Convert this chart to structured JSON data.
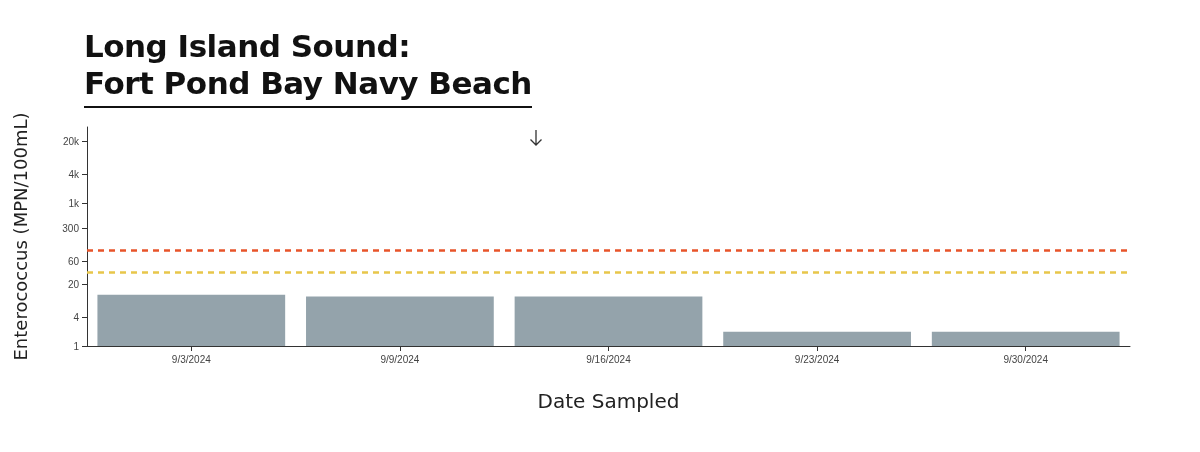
{
  "chart_data": {
    "type": "bar",
    "title": "Long Island Sound:\nFort Pond Bay Navy Beach",
    "xlabel": "Date Sampled",
    "ylabel": "Enterococcus (MPN/100mL)",
    "categories": [
      "9/3/2024",
      "9/9/2024",
      "9/16/2024",
      "9/23/2024",
      "9/30/2024"
    ],
    "series": [
      {
        "color": "#94a3ab",
        "values": [
          12,
          11,
          11,
          2,
          2
        ]
      }
    ],
    "log": "y",
    "ylim": [
      1,
      40000
    ],
    "yticks": [
      1,
      4,
      20,
      60,
      300,
      {
        "value": 1000,
        "label": "1k"
      },
      {
        "value": 4000,
        "label": "4k"
      },
      {
        "value": 20000,
        "label": "20k"
      }
    ],
    "ref_lines": [
      {
        "axis": "y",
        "value": 104,
        "color": "#e8542a",
        "line_style": "dashed"
      },
      {
        "axis": "y",
        "value": 35,
        "color": "#e8c64a",
        "line_style": "dashed"
      }
    ],
    "grid": false
  }
}
